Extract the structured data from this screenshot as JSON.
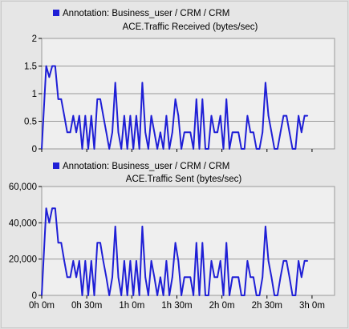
{
  "chart_data": [
    {
      "type": "line",
      "legend": "Annotation: Business_user / CRM / CRM",
      "title": "ACE.Traffic Received (bytes/sec)",
      "color": "#1f1fd6",
      "x_unit": "minutes",
      "x": [
        0,
        3,
        5,
        7,
        9,
        11,
        13,
        15,
        17,
        19,
        21,
        23,
        25,
        27,
        29,
        31,
        33,
        35,
        37,
        39,
        41,
        43,
        45,
        47,
        49,
        51,
        53,
        55,
        57,
        59,
        61,
        63,
        65,
        67,
        69,
        71,
        73,
        75,
        77,
        79,
        81,
        83,
        85,
        87,
        89,
        91,
        93,
        95,
        97,
        99,
        101,
        103,
        105,
        107,
        109,
        111,
        113,
        115,
        117,
        119,
        121,
        123,
        125,
        127,
        129,
        131,
        133,
        135,
        137,
        139,
        141,
        143,
        145,
        147,
        149,
        151,
        153,
        155,
        157,
        159,
        161,
        163,
        165,
        167,
        169,
        171,
        173,
        175,
        177
      ],
      "y": [
        0,
        1.5,
        1.3,
        1.5,
        1.5,
        0.9,
        0.9,
        0.6,
        0.3,
        0.3,
        0.6,
        0.3,
        0.6,
        0,
        0.6,
        0,
        0.6,
        0,
        0.9,
        0.9,
        0.6,
        0.3,
        0,
        0.3,
        1.2,
        0.3,
        0,
        0.6,
        0,
        0.6,
        0,
        0.6,
        0,
        1.2,
        0.3,
        0,
        0.6,
        0.3,
        0,
        0.3,
        0,
        0.6,
        0,
        0.3,
        0.9,
        0.6,
        0,
        0.3,
        0.3,
        0.3,
        0,
        0.9,
        0,
        0.9,
        0,
        0,
        0.6,
        0.3,
        0.3,
        0.6,
        0,
        0.9,
        0,
        0.3,
        0.3,
        0.3,
        0,
        0,
        0.6,
        0.3,
        0.3,
        0,
        0,
        0.3,
        1.2,
        0.6,
        0.3,
        0,
        0,
        0.3,
        0.6,
        0.6,
        0.3,
        0,
        0,
        0.6,
        0.3,
        0.6,
        0.6
      ],
      "ylim": [
        0,
        2
      ],
      "yticks": [
        0,
        0.5,
        1,
        1.5,
        2
      ],
      "ytick_labels": [
        "0",
        "0.5",
        "1",
        "1.5",
        "2"
      ],
      "grid": true
    },
    {
      "type": "line",
      "legend": "Annotation: Business_user / CRM / CRM",
      "title": "ACE.Traffic Sent (bytes/sec)",
      "color": "#1f1fd6",
      "x_unit": "minutes",
      "x": [
        0,
        3,
        5,
        7,
        9,
        11,
        13,
        15,
        17,
        19,
        21,
        23,
        25,
        27,
        29,
        31,
        33,
        35,
        37,
        39,
        41,
        43,
        45,
        47,
        49,
        51,
        53,
        55,
        57,
        59,
        61,
        63,
        65,
        67,
        69,
        71,
        73,
        75,
        77,
        79,
        81,
        83,
        85,
        87,
        89,
        91,
        93,
        95,
        97,
        99,
        101,
        103,
        105,
        107,
        109,
        111,
        113,
        115,
        117,
        119,
        121,
        123,
        125,
        127,
        129,
        131,
        133,
        135,
        137,
        139,
        141,
        143,
        145,
        147,
        149,
        151,
        153,
        155,
        157,
        159,
        161,
        163,
        165,
        167,
        169,
        171,
        173,
        175,
        177
      ],
      "y": [
        0,
        48000,
        40000,
        48000,
        48000,
        29000,
        29000,
        19000,
        10000,
        10000,
        19000,
        10000,
        19000,
        0,
        19000,
        0,
        19000,
        0,
        29000,
        29000,
        19000,
        10000,
        0,
        10000,
        38000,
        10000,
        0,
        19000,
        0,
        19000,
        0,
        19000,
        0,
        38000,
        10000,
        0,
        19000,
        10000,
        0,
        10000,
        0,
        19000,
        0,
        10000,
        29000,
        19000,
        0,
        10000,
        10000,
        10000,
        0,
        29000,
        0,
        29000,
        0,
        0,
        19000,
        10000,
        10000,
        19000,
        0,
        29000,
        0,
        10000,
        10000,
        10000,
        0,
        0,
        19000,
        10000,
        10000,
        0,
        0,
        10000,
        38000,
        19000,
        10000,
        0,
        0,
        10000,
        19000,
        19000,
        10000,
        0,
        0,
        19000,
        10000,
        19000,
        19000
      ],
      "ylim": [
        0,
        60000
      ],
      "yticks": [
        0,
        20000,
        40000,
        60000
      ],
      "ytick_labels": [
        "0",
        "20,000",
        "40,000",
        "60,000"
      ],
      "grid": true
    }
  ],
  "x_axis": {
    "range_minutes": [
      0,
      195
    ],
    "ticks_minutes": [
      0,
      30,
      60,
      90,
      120,
      150,
      180
    ],
    "tick_labels": [
      "0h 0m",
      "0h 30m",
      "1h 0m",
      "1h 30m",
      "2h 0m",
      "2h 30m",
      "3h 0m"
    ]
  }
}
